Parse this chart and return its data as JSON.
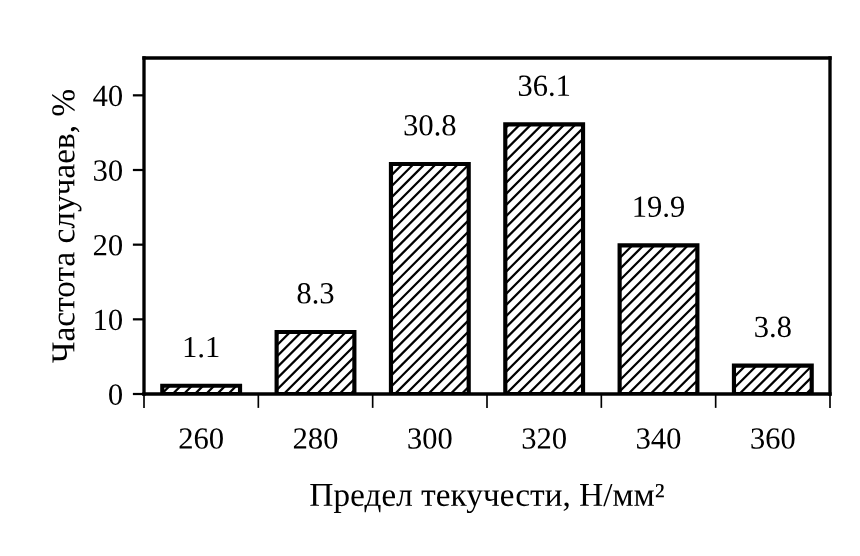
{
  "chart_data": {
    "type": "bar",
    "xlabel": "Предел текучести, Н/мм²",
    "ylabel": "Частота случаев, %",
    "categories": [
      "260",
      "280",
      "300",
      "320",
      "340",
      "360"
    ],
    "values": [
      1.1,
      8.3,
      30.8,
      36.1,
      19.9,
      3.8
    ],
    "color": "#000000",
    "data_labels": true,
    "ylim": [
      0,
      45
    ],
    "yticks": [
      0,
      10,
      20,
      30,
      40
    ],
    "grid": false,
    "legend": false
  }
}
